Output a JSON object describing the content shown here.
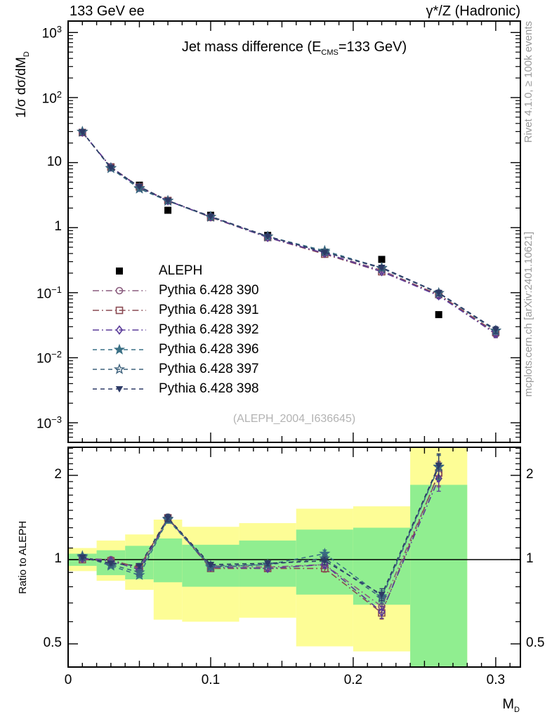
{
  "header": {
    "left": "133 GeV ee",
    "right": "γ*/Z (Hadronic)"
  },
  "main_panel": {
    "title_pre": "Jet mass difference (E",
    "title_sub": "CMS",
    "title_post": "=133 GeV)",
    "ylabel_pre": "1/σ dσ/dM",
    "ylabel_sub": "D",
    "watermark": "(ALEPH_2004_I636645)"
  },
  "ratio_panel": {
    "ylabel": "Ratio to ALEPH"
  },
  "x_axis": {
    "label_pre": "M",
    "label_sub": "D"
  },
  "side_notes": {
    "top": "Rivet 4.1.0, ≥ 100k events",
    "bottom": "mcplots.cern.ch [arXiv:2401.10621]"
  },
  "colors": {
    "band_yellow": "#fdfd96",
    "band_green": "#90ee90",
    "frame": "#000000",
    "watermark_gray": "#b3b3b3",
    "sidenote_gray": "#9a9a9a"
  },
  "chart_data": {
    "type": "line",
    "title": "Jet mass difference (E_CMS=133 GeV)",
    "xlabel": "M_D",
    "ylabel_main": "1/σ dσ/dM_D",
    "ylabel_ratio": "Ratio to ALEPH",
    "x": [
      0.01,
      0.03,
      0.05,
      0.07,
      0.1,
      0.14,
      0.18,
      0.22,
      0.26,
      0.3
    ],
    "bin_edges": [
      0,
      0.02,
      0.04,
      0.06,
      0.08,
      0.12,
      0.16,
      0.2,
      0.24,
      0.28,
      0.32
    ],
    "xlim": [
      0,
      0.3173
    ],
    "main_ylim": [
      0.0005,
      1500
    ],
    "ratio_ylim": [
      0.413,
      2.52
    ],
    "main_ylog": true,
    "ratio_ylog": true,
    "aleph": {
      "label": "ALEPH",
      "color": "#000000",
      "marker": "square-filled",
      "values": [
        29,
        8.6,
        4.5,
        1.85,
        1.55,
        0.76,
        0.42,
        0.325,
        0.046
      ]
    },
    "series": [
      {
        "label": "Pythia 6.428 390",
        "color": "#8a5c7e",
        "marker": "circle-open",
        "dash": "dashdot",
        "main_values": [
          29.3,
          8.6,
          4.19,
          2.59,
          1.47,
          0.714,
          0.403,
          0.221,
          0.0929,
          0.023
        ],
        "ratio_values": [
          1.01,
          1.0,
          0.93,
          1.4,
          0.95,
          0.94,
          0.96,
          0.68,
          2.02
        ]
      },
      {
        "label": "Pythia 6.428 391",
        "color": "#8a4a52",
        "marker": "square-open",
        "dash": "dashdot",
        "main_values": [
          29.0,
          8.51,
          4.23,
          2.61,
          1.44,
          0.707,
          0.391,
          0.21,
          0.0938,
          0.0245
        ],
        "ratio_values": [
          1.0,
          0.99,
          0.94,
          1.41,
          0.93,
          0.93,
          0.93,
          0.645,
          2.04
        ]
      },
      {
        "label": "Pythia 6.428 392",
        "color": "#5a3a99",
        "marker": "diamond-open",
        "dash": "dashdot",
        "main_values": [
          29.3,
          8.51,
          4.14,
          2.59,
          1.46,
          0.707,
          0.403,
          0.211,
          0.0897,
          0.0235
        ],
        "ratio_values": [
          1.01,
          0.99,
          0.92,
          1.4,
          0.94,
          0.93,
          0.96,
          0.65,
          1.95
        ]
      },
      {
        "label": "Pythia 6.428 396",
        "color": "#3a7085",
        "marker": "star-filled",
        "dash": "dashed",
        "main_values": [
          29.9,
          8.17,
          3.96,
          2.57,
          1.46,
          0.73,
          0.441,
          0.241,
          0.0989,
          0.026
        ],
        "ratio_values": [
          1.03,
          0.95,
          0.88,
          1.39,
          0.94,
          0.96,
          1.05,
          0.74,
          2.15
        ]
      },
      {
        "label": "Pythia 6.428 397",
        "color": "#3d617c",
        "marker": "star-open",
        "dash": "dashed",
        "main_values": [
          29.6,
          8.26,
          4.05,
          2.59,
          1.47,
          0.73,
          0.424,
          0.237,
          0.0984,
          0.0262
        ],
        "ratio_values": [
          1.02,
          0.96,
          0.9,
          1.4,
          0.95,
          0.96,
          1.01,
          0.73,
          2.14
        ]
      },
      {
        "label": "Pythia 6.428 398",
        "color": "#2d3a66",
        "marker": "triangle-down-filled",
        "dash": "dashed",
        "main_values": [
          29.6,
          8.34,
          4.28,
          2.61,
          1.49,
          0.737,
          0.416,
          0.244,
          0.0998,
          0.027
        ],
        "ratio_values": [
          1.02,
          0.97,
          0.95,
          1.41,
          0.96,
          0.97,
          0.99,
          0.75,
          2.17
        ]
      }
    ],
    "bin_err_frac": [
      0.015,
      0.015,
      0.02,
      0.03,
      0.015,
      0.02,
      0.03,
      0.05,
      0.1,
      0.12
    ],
    "bands": [
      {
        "x0": 0.0,
        "x1": 0.02,
        "yellow": [
          0.91,
          1.1
        ],
        "green": [
          0.95,
          1.05
        ]
      },
      {
        "x0": 0.02,
        "x1": 0.04,
        "yellow": [
          0.84,
          1.17
        ],
        "green": [
          0.88,
          1.08
        ]
      },
      {
        "x0": 0.04,
        "x1": 0.06,
        "yellow": [
          0.78,
          1.23
        ],
        "green": [
          0.85,
          1.12
        ]
      },
      {
        "x0": 0.06,
        "x1": 0.08,
        "yellow": [
          0.61,
          1.39
        ],
        "green": [
          0.83,
          1.19
        ]
      },
      {
        "x0": 0.08,
        "x1": 0.12,
        "yellow": [
          0.6,
          1.31
        ],
        "green": [
          0.8,
          1.13
        ]
      },
      {
        "x0": 0.12,
        "x1": 0.16,
        "yellow": [
          0.62,
          1.35
        ],
        "green": [
          0.8,
          1.17
        ]
      },
      {
        "x0": 0.16,
        "x1": 0.2,
        "yellow": [
          0.49,
          1.52
        ],
        "green": [
          0.75,
          1.28
        ]
      },
      {
        "x0": 0.2,
        "x1": 0.24,
        "yellow": [
          0.47,
          1.55
        ],
        "green": [
          0.69,
          1.3
        ]
      },
      {
        "x0": 0.24,
        "x1": 0.28,
        "yellow": [
          0.4,
          2.55
        ],
        "green": [
          0.4,
          1.85
        ]
      }
    ],
    "ratio_ref_line": 1,
    "axis_ticks": {
      "x_labeled": [
        {
          "v": 0,
          "label": "0"
        },
        {
          "v": 0.1,
          "label": "0.1"
        },
        {
          "v": 0.2,
          "label": "0.2"
        },
        {
          "v": 0.3,
          "label": "0.3"
        }
      ],
      "main_y_labeled": [
        {
          "v": 1000,
          "base": "10",
          "exp": "3"
        },
        {
          "v": 100,
          "base": "10",
          "exp": "2"
        },
        {
          "v": 10,
          "base": "10",
          "exp": ""
        },
        {
          "v": 1,
          "base": "1",
          "exp": ""
        },
        {
          "v": 0.1,
          "base": "10",
          "exp": "−1"
        },
        {
          "v": 0.01,
          "base": "10",
          "exp": "−2"
        },
        {
          "v": 0.001,
          "base": "10",
          "exp": "−3"
        }
      ],
      "ratio_y_labeled": [
        {
          "v": 2,
          "label": "2"
        },
        {
          "v": 1,
          "label": "1"
        },
        {
          "v": 0.5,
          "label": "0.5"
        }
      ]
    },
    "legend_order": [
      "ALEPH",
      "Pythia 6.428 390",
      "Pythia 6.428 391",
      "Pythia 6.428 392",
      "Pythia 6.428 396",
      "Pythia 6.428 397",
      "Pythia 6.428 398"
    ]
  }
}
